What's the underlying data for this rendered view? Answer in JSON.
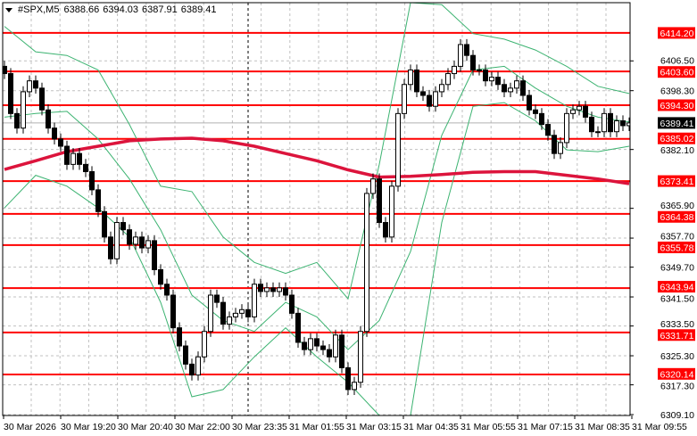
{
  "header": {
    "menu_icon": "triangle-down-icon",
    "symbol": "#SPX,M5",
    "open": "6388.66",
    "high": "6394.03",
    "low": "6387.91",
    "close": "6389.41"
  },
  "colors": {
    "background": "#ffffff",
    "grid": "#c0c0c0",
    "levels": "#ff0000",
    "moving_average": "#dc143c",
    "bands": "#3cb371",
    "bull_body": "#ffffff",
    "bear_body": "#000000",
    "current_price_bg": "#000000"
  },
  "chart_data": {
    "type": "candlestick",
    "symbol": "#SPX",
    "timeframe": "M5",
    "ylim": [
      6309.1,
      6420.0
    ],
    "grid": true,
    "closes": [
      6403,
      6392,
      6388,
      6398,
      6401,
      6399,
      6393,
      6388,
      6385,
      6383,
      6378,
      6381,
      6378,
      6376,
      6371,
      6365,
      6358,
      6352,
      6362,
      6360,
      6356,
      6358,
      6355,
      6357,
      6349,
      6345,
      6342,
      6333,
      6328,
      6323,
      6320,
      6325,
      6332,
      6342,
      6340,
      6334,
      6336,
      6337,
      6338,
      6336,
      6345,
      6343,
      6344,
      6343,
      6344,
      6342,
      6337,
      6329,
      6327,
      6330,
      6328,
      6327,
      6325,
      6331,
      6322,
      6316,
      6318,
      6332,
      6370,
      6374,
      6362,
      6358,
      6372,
      6392,
      6400,
      6404,
      6398,
      6397,
      6394,
      6398,
      6400,
      6403,
      6405,
      6411,
      6408,
      6404,
      6404,
      6401,
      6402,
      6400,
      6398,
      6399,
      6401,
      6397,
      6393,
      6392,
      6389,
      6386,
      6381,
      6384,
      6392,
      6393,
      6394,
      6391,
      6387,
      6387,
      6392,
      6387,
      6390,
      6388.66,
      6389.41
    ],
    "indicator_sample_index": [
      0,
      5,
      10,
      15,
      20,
      25,
      30,
      35,
      40,
      45,
      50,
      55,
      60,
      65,
      70,
      75,
      80,
      85,
      90,
      95,
      100
    ],
    "bollinger_upper": [
      6416,
      6409,
      6408,
      6404,
      6389,
      6372,
      6370.5,
      6358,
      6351,
      6348,
      6351,
      6341,
      6378,
      6426,
      6422,
      6414,
      6412.5,
      6409.5,
      6405,
      6399.5,
      6397.5
    ],
    "bollinger_middle": [
      6391,
      6392,
      6392.6,
      6385,
      6374,
      6360,
      6342,
      6335,
      6332,
      6340,
      6336,
      6327,
      6335,
      6354,
      6386,
      6404,
      6405,
      6399,
      6394,
      6391,
      6389.7
    ],
    "bollinger_lower": [
      6366,
      6375,
      6372,
      6366,
      6358,
      6340,
      6314,
      6316,
      6325,
      6333,
      6325,
      6318,
      6280,
      6300,
      6362,
      6394,
      6395,
      6390,
      6382,
      6381.5,
      6383
    ],
    "moving_average": [
      6376.6,
      6379,
      6381.5,
      6383,
      6384.5,
      6385,
      6385.2,
      6384.5,
      6383,
      6381,
      6379,
      6376.5,
      6374.5,
      6374.7,
      6375.2,
      6375.8,
      6376,
      6376,
      6375,
      6374,
      6372.7
    ],
    "levels": [
      "6414.20",
      "6403.60",
      "6394.30",
      "6385.02",
      "6373.41",
      "6364.38",
      "6355.78",
      "6343.94",
      "6331.71",
      "6320.14"
    ],
    "y_ticks": [
      "6406.50",
      "6398.30",
      "6382.10",
      "6365.90",
      "6357.70",
      "6349.70",
      "6341.50",
      "6333.50",
      "6325.30",
      "6317.30",
      "6309.10"
    ],
    "current_price": "6389.41",
    "x_ticks": [
      "30 Mar 2026",
      "30 Mar 19:20",
      "30 Mar 20:40",
      "30 Mar 22:00",
      "30 Mar 23:35",
      "31 Mar 01:55",
      "31 Mar 03:15",
      "31 Mar 04:35",
      "31 Mar 05:55",
      "31 Mar 07:15",
      "31 Mar 08:35",
      "31 Mar 09:55"
    ]
  }
}
